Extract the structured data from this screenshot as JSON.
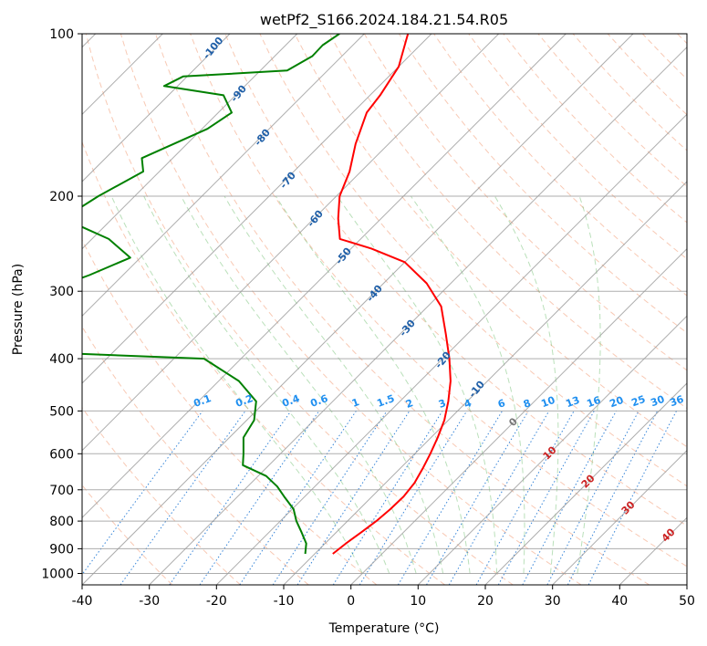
{
  "chart_data": {
    "type": "line",
    "title": "wetPf2_S166.2024.184.21.54.R05",
    "xlabel": "Temperature (°C)",
    "ylabel": "Pressure (hPa)",
    "xlim": [
      -40,
      50
    ],
    "ylim": [
      1050,
      100
    ],
    "yscale": "log",
    "x_ticks": [
      -40,
      -30,
      -20,
      -10,
      0,
      10,
      20,
      30,
      40,
      50
    ],
    "y_ticks": [
      100,
      200,
      300,
      400,
      500,
      600,
      700,
      800,
      900,
      1000
    ],
    "grid": true,
    "skew_degrees": 45,
    "series": [
      {
        "key": "temperature",
        "color": "#ff0000",
        "points": [
          [
            -7.3,
            920
          ],
          [
            -6.9,
            880
          ],
          [
            -6.3,
            840
          ],
          [
            -5.7,
            800
          ],
          [
            -5.4,
            760
          ],
          [
            -5.3,
            720
          ],
          [
            -5.7,
            680
          ],
          [
            -6.6,
            640
          ],
          [
            -7.7,
            600
          ],
          [
            -9.0,
            560
          ],
          [
            -10.6,
            520
          ],
          [
            -12.8,
            480
          ],
          [
            -15.5,
            440
          ],
          [
            -19.0,
            400
          ],
          [
            -23.2,
            360
          ],
          [
            -28.0,
            320
          ],
          [
            -33.6,
            290
          ],
          [
            -40.0,
            265
          ],
          [
            -47.0,
            250
          ],
          [
            -53.1,
            240
          ],
          [
            -56.4,
            220
          ],
          [
            -59.5,
            200
          ],
          [
            -61.7,
            180
          ],
          [
            -64.9,
            160
          ],
          [
            -67.9,
            140
          ],
          [
            -68.5,
            130
          ],
          [
            -70.0,
            115
          ],
          [
            -73.5,
            100
          ]
        ]
      },
      {
        "key": "dewpoint",
        "color": "#008000",
        "points": [
          [
            -11.4,
            920
          ],
          [
            -12.8,
            880
          ],
          [
            -15.1,
            840
          ],
          [
            -17.6,
            800
          ],
          [
            -19.8,
            760
          ],
          [
            -23.1,
            720
          ],
          [
            -25.6,
            690
          ],
          [
            -28.8,
            660
          ],
          [
            -33.9,
            630
          ],
          [
            -35.5,
            600
          ],
          [
            -37.9,
            560
          ],
          [
            -38.9,
            520
          ],
          [
            -41.4,
            480
          ],
          [
            -47.0,
            440
          ],
          [
            -55.5,
            400
          ],
          [
            -79.0,
            390
          ],
          [
            -101.8,
            340
          ],
          [
            -91.0,
            310
          ],
          [
            -85.0,
            280
          ],
          [
            -81.5,
            260
          ],
          [
            -87.5,
            240
          ],
          [
            -97.3,
            220
          ],
          [
            -95.4,
            200
          ],
          [
            -92.4,
            180
          ],
          [
            -94.6,
            170
          ],
          [
            -89.2,
            150
          ],
          [
            -88.0,
            140
          ],
          [
            -91.8,
            130
          ],
          [
            -102.0,
            125
          ],
          [
            -100.6,
            120
          ],
          [
            -86.0,
            117
          ],
          [
            -84.4,
            110
          ],
          [
            -84.5,
            105
          ],
          [
            -83.7,
            100
          ]
        ]
      }
    ],
    "dry_adiabat_labels": [
      "-100",
      "-90",
      "-80",
      "-70",
      "-60",
      "-50",
      "-40",
      "-30",
      "-20",
      "-10"
    ],
    "mixing_ratio_labels": [
      "0.1",
      "0.2",
      "0.4",
      "0.6",
      "1",
      "1.5",
      "2",
      "3",
      "4",
      "6",
      "8",
      "10",
      "13",
      "16",
      "20",
      "25",
      "30",
      "36"
    ],
    "moist_adiabat_labels": [
      "0",
      "10",
      "20",
      "30",
      "40"
    ]
  }
}
